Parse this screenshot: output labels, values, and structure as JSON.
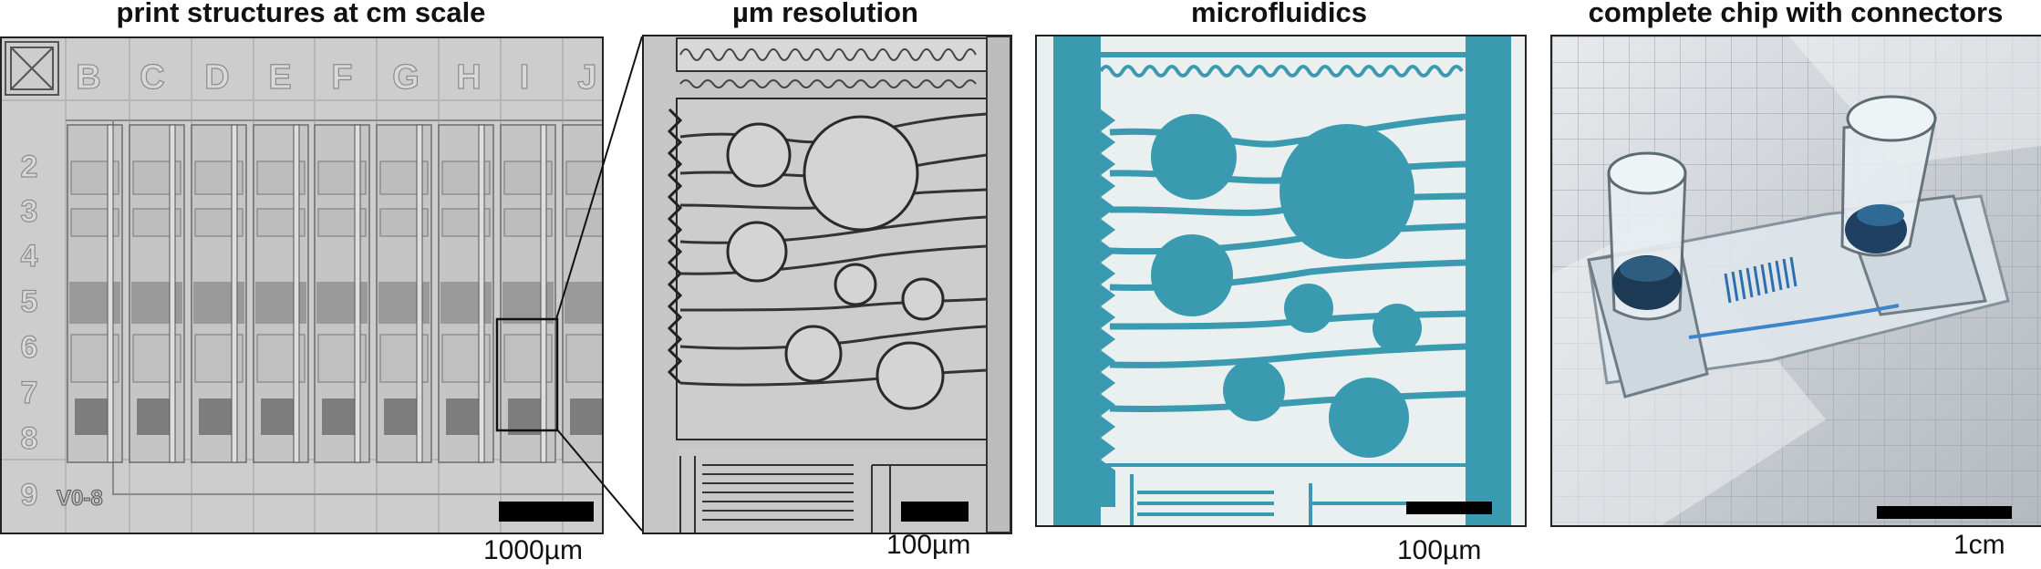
{
  "panels": [
    {
      "title": "print structures at cm scale",
      "scale_label": "1000µm"
    },
    {
      "title": "µm resolution",
      "scale_label": "100µm"
    },
    {
      "title": "microfluidics",
      "scale_label": "100µm"
    },
    {
      "title": "complete chip with connectors",
      "scale_label": "1cm"
    }
  ],
  "panel1": {
    "column_letters": [
      "B",
      "C",
      "D",
      "E",
      "F",
      "G",
      "H",
      "I",
      "J"
    ],
    "row_numbers": [
      "2",
      "3",
      "4",
      "5",
      "6",
      "7",
      "8",
      "9"
    ],
    "version_label": "V0-8"
  },
  "colors": {
    "micrograph_bg": "#c9c9c9",
    "channel_teal": "#3a9bb0",
    "frame": "#222222"
  }
}
